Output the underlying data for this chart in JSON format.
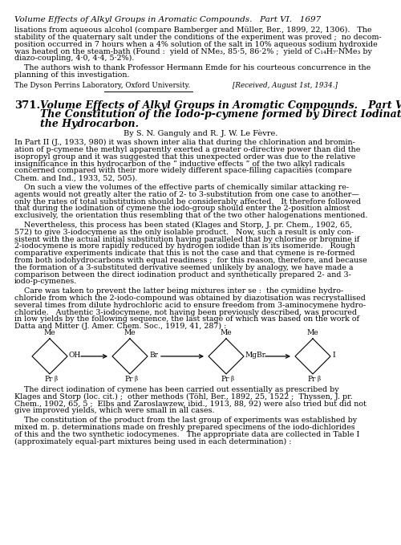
{
  "bg_color": "#ffffff",
  "header_text": "Volume Effects of Alkyl Groups in Aromatic Compounds.   Part VI.   1697",
  "lines_para1": [
    "lisations from aqueous alcohol (compare Bamberger and Müller, Ber., 1899, 22, 1306).   The",
    "stability of the quaternary salt under the conditions of the experiment was proved ;  no decom-",
    "position occurred in 7 hours when a 4% solution of the salt in 10% aqueous sodium hydroxide",
    "was heated on the steam-bath (Found :  yield of NMe₃, 85·5, 86·2% ;  yield of C₁₄H₇·NMe₃ by",
    "diazo-coupling, 4·0, 4·4, 5·2%)."
  ],
  "lines_para2": [
    "    The authors wish to thank Professor Hermann Emde for his courteous concurrence in the",
    "planning of this investigation."
  ],
  "institution": "The Dyson Perrins Laboratory, Oxford University.",
  "received": "[Received, August 1st, 1934.]",
  "article_num": "371.",
  "title_lines": [
    "Volume Effects of Alkyl Groups in Aromatic Compounds.   Part VI.",
    "The Constitution of the Iodo-p-cymene formed by Direct Iodination of",
    "the Hydrocarbon."
  ],
  "byline": "By S. N. Ganguly and R. J. W. Le Fèvre.",
  "body1_lines": [
    "In Part II (J., 1933, 980) it was shown inter alia that during the chlorination and bromin-",
    "ation of p-cymene the methyl apparently exerted a greater o-directive power than did the",
    "isopropyl group and it was suggested that this unexpected order was due to the relative",
    "insignificance in this hydrocarbon of the “ inductive effects ” of the two alkyl radicals",
    "concerned compared with their more widely different space-filling capacities (compare",
    "Chem. and Ind., 1933, 52, 505)."
  ],
  "body2_lines": [
    "    On such a view the volumes of the effective parts of chemically similar attacking re-",
    "agents would not greatly alter the ratio of 2- to 3-substitution from one case to another—",
    "only the rates of total substitution should be considerably affected.   It therefore followed",
    "that during the iodination of cymene the iodo-group should enter the 2-position almost",
    "exclusively, the orientation thus resembling that of the two other halogenations mentioned."
  ],
  "body3_lines": [
    "    Nevertheless, this process has been stated (Klages and Storp, J. pr. Chem., 1902, 65,",
    "572) to give 3-iodocymene as the only isolable product.   Now, such a result is only con-",
    "sistent with the actual initial substitution having paralleled that by chlorine or bromine if",
    "2-iodocymene is more rapidly reduced by hydrogen iodide than is its isomeride.   Rough",
    "comparative experiments indicate that this is not the case and that cymene is re-formed",
    "from both iodohydrocarbons with equal readiness ;  for this reason, therefore, and because",
    "the formation of a 3-substituted derivative seemed unlikely by analogy, we have made a",
    "comparison between the direct iodination product and synthetically prepared 2- and 3-",
    "iodo-p-cymenes."
  ],
  "body4_lines": [
    "    Care was taken to prevent the latter being mixtures inter se :  the cymidine hydro-",
    "chloride from which the 2-iodo-compound was obtained by diazotisation was recrystallised",
    "several times from dilute hydrochloric acid to ensure freedom from 3-aminocymene hydro-",
    "chloride.   Authentic 3-iodocymene, not having been previously described, was procured",
    "in low yields by the following sequence, the last stage of which was based on the work of",
    "Datta and Mitter (J. Amer. Chem. Soc., 1919, 41, 287) :"
  ],
  "struct_labels_top": [
    "Me",
    "Me",
    "Me",
    "Me"
  ],
  "struct_labels_side": [
    "OH",
    "Br",
    "MgBr",
    "I"
  ],
  "body5_lines": [
    "    The direct iodination of cymene has been carried out essentially as prescribed by",
    "Klages and Storp (loc. cit.) ;  other methods (Töhl, Ber., 1892, 25, 1522 ;  Thyssen, J. pr.",
    "Chem., 1902, 65, 5 ;  Elbs and Zaroslawzew, ibid., 1913, 88, 92) were also tried but did not",
    "give improved yields, which were small in all cases."
  ],
  "body6_lines": [
    "    The constitution of the product from the last group of experiments was established by",
    "mixed m. p. determinations made on freshly prepared specimens of the iodo-dichlorides",
    "of this and the two synthetic iodocymenes.   The appropriate data are collected in Table I",
    "(approximately equal-part mixtures being used in each determination) :"
  ]
}
